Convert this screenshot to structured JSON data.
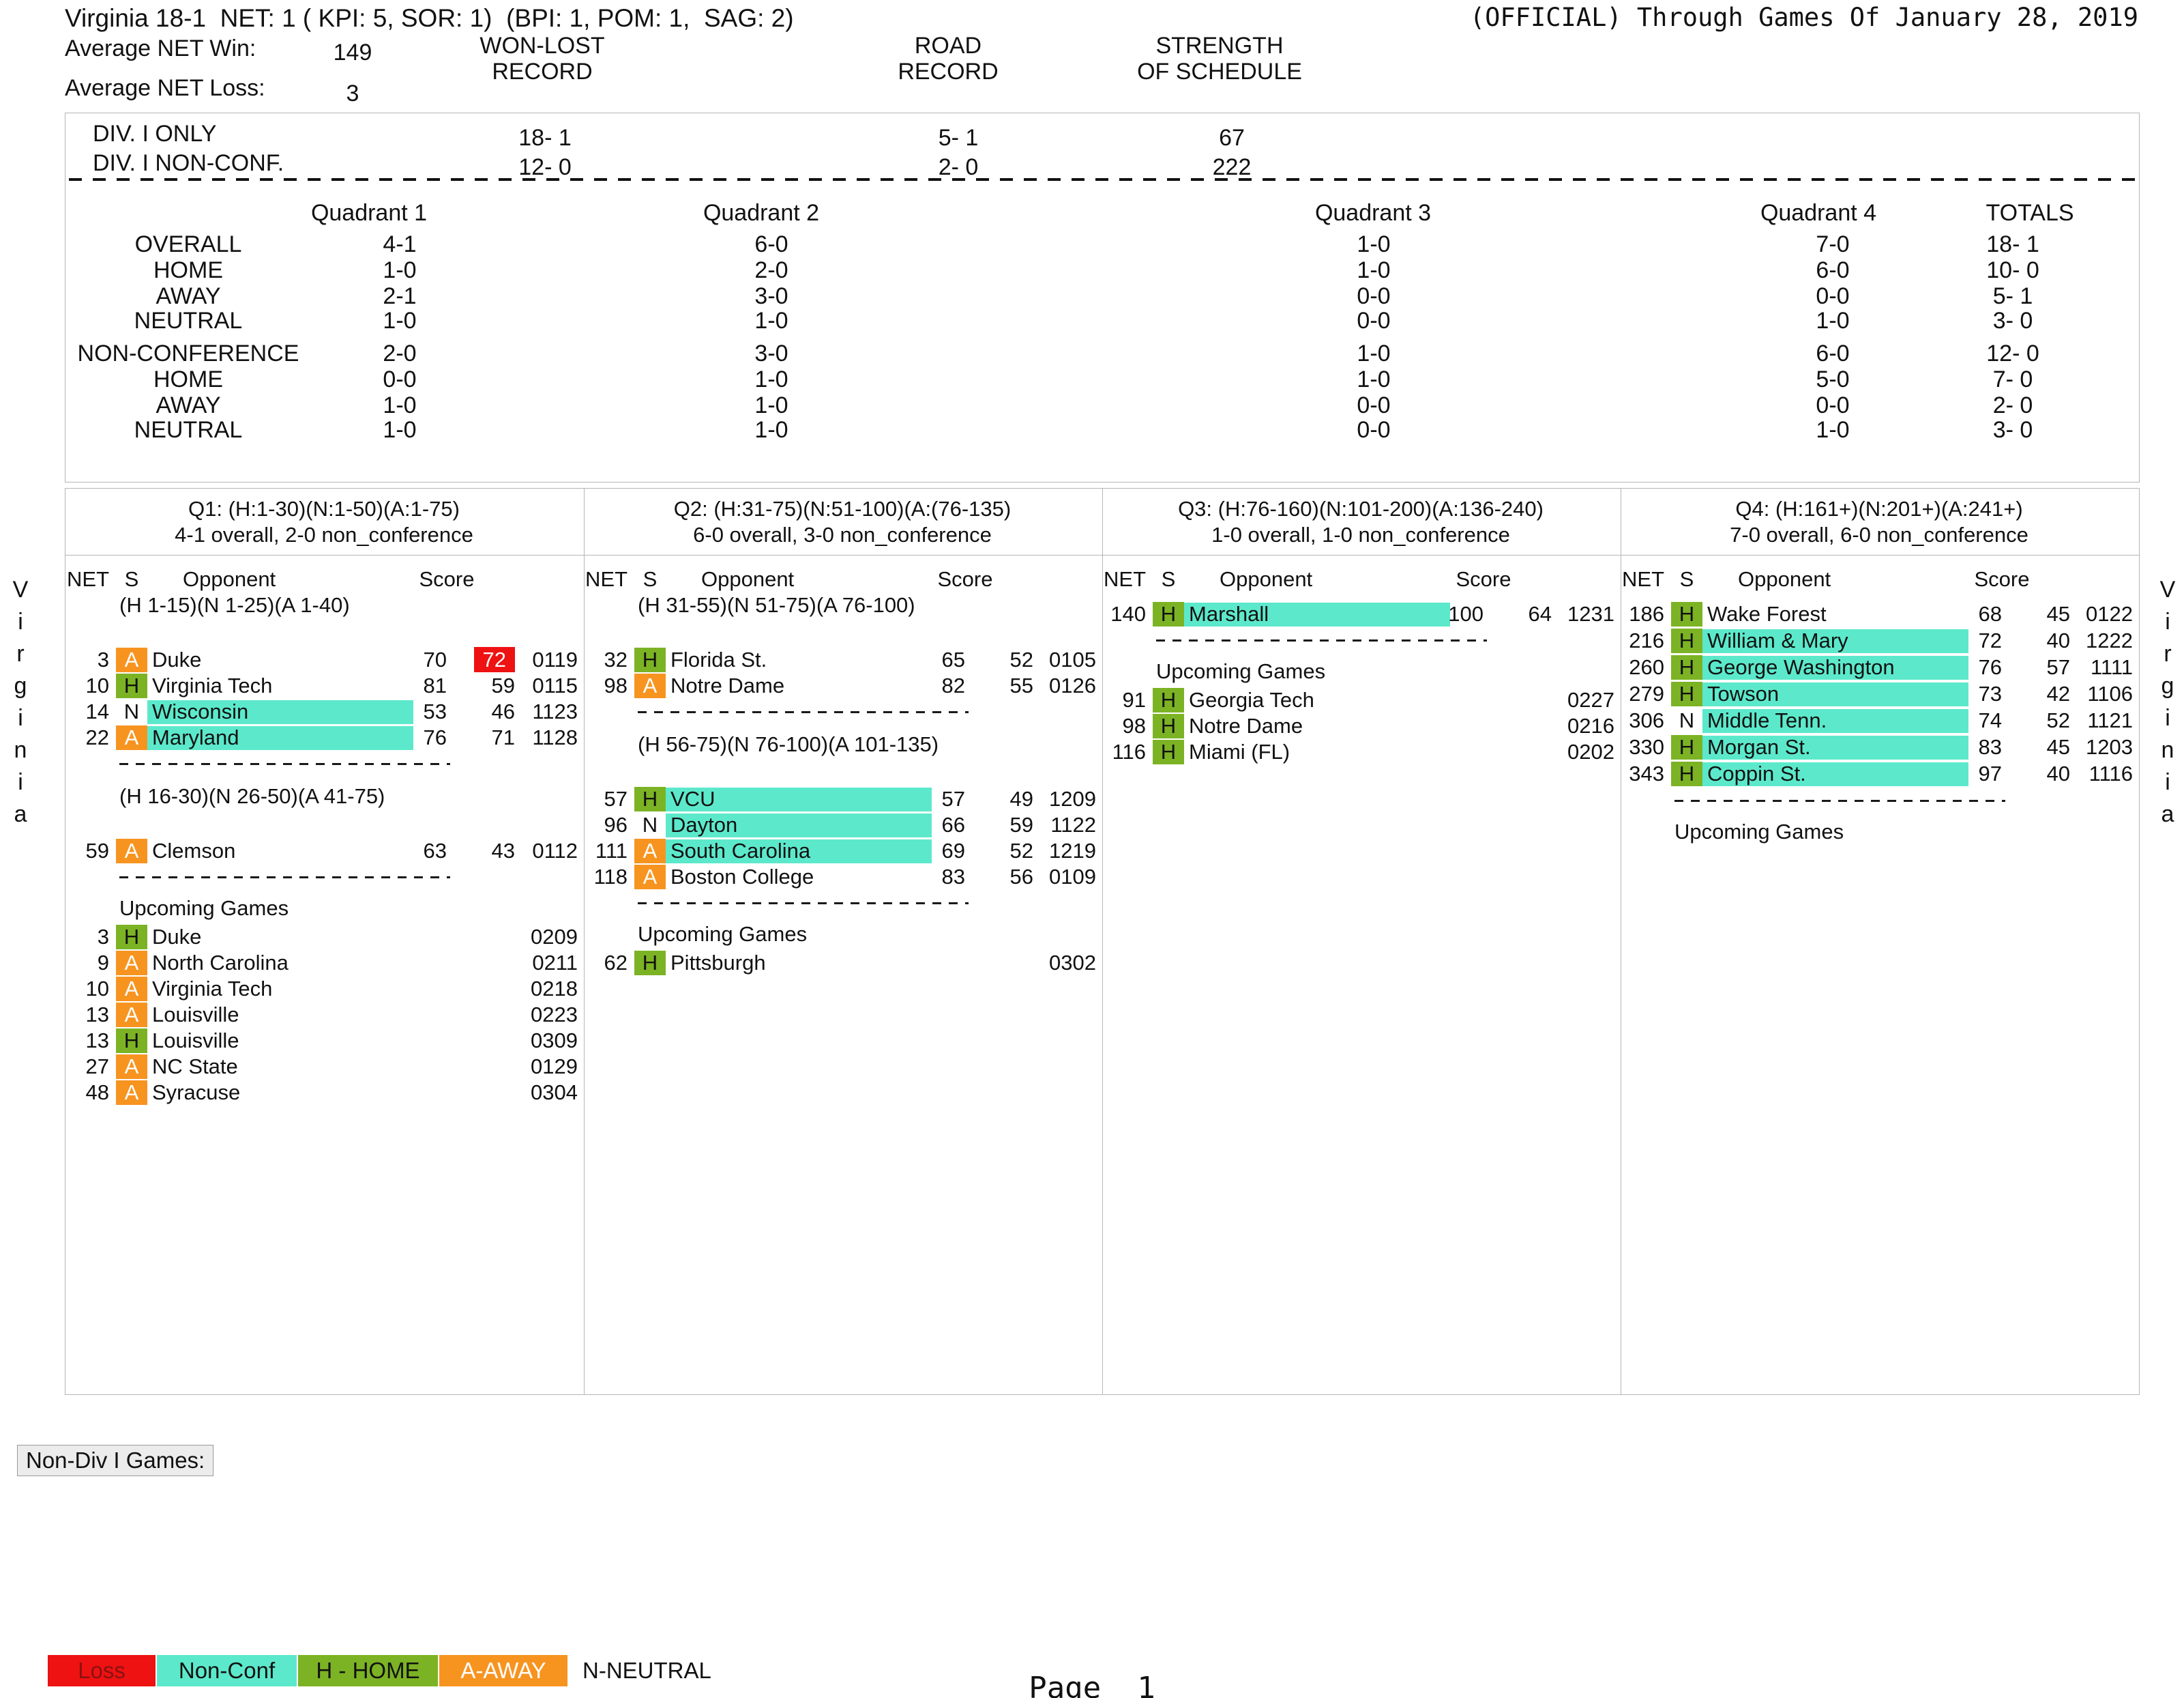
{
  "page": {
    "team_line": "Virginia 18-1  NET: 1 ( KPI: 5, SOR: 1)  (BPI: 1, POM: 1,  SAG: 2)",
    "official_line": "(OFFICIAL) Through Games Of January 28, 2019",
    "footer": "Page  1",
    "side_text": "Virginia",
    "non_div_games_label": "Non-Div I Games:"
  },
  "stats": {
    "avg_net_win_label": "Average NET Win:",
    "avg_net_win": "149",
    "avg_net_loss_label": "Average NET Loss:",
    "avg_net_loss": "3",
    "won_lost_header": [
      "WON-LOST",
      "RECORD"
    ],
    "road_header": [
      "ROAD",
      "RECORD"
    ],
    "sos_header": [
      "STRENGTH",
      "OF SCHEDULE"
    ],
    "div_rows": [
      {
        "label": "DIV. I ONLY",
        "won_lost": "18- 1",
        "road": "5- 1",
        "sos": "67"
      },
      {
        "label": "DIV. I NON-CONF.",
        "won_lost": "12- 0",
        "road": "2- 0",
        "sos": "222"
      }
    ]
  },
  "quadrant_table": {
    "columns": [
      "Quadrant 1",
      "Quadrant 2",
      "Quadrant 3",
      "Quadrant 4",
      "TOTALS"
    ],
    "rows": [
      {
        "label": "OVERALL",
        "values": [
          "4-1",
          "6-0",
          "1-0",
          "7-0",
          "18- 1"
        ]
      },
      {
        "label": "HOME",
        "values": [
          "1-0",
          "2-0",
          "1-0",
          "6-0",
          "10- 0"
        ]
      },
      {
        "label": "AWAY",
        "values": [
          "2-1",
          "3-0",
          "0-0",
          "0-0",
          "5- 1"
        ]
      },
      {
        "label": "NEUTRAL",
        "values": [
          "1-0",
          "1-0",
          "0-0",
          "1-0",
          "3- 0"
        ]
      },
      {
        "label": "NON-CONFERENCE",
        "values": [
          "2-0",
          "3-0",
          "1-0",
          "6-0",
          "12- 0"
        ]
      },
      {
        "label": "HOME",
        "values": [
          "0-0",
          "1-0",
          "1-0",
          "5-0",
          "7- 0"
        ]
      },
      {
        "label": "AWAY",
        "values": [
          "1-0",
          "1-0",
          "0-0",
          "0-0",
          "2- 0"
        ]
      },
      {
        "label": "NEUTRAL",
        "values": [
          "1-0",
          "1-0",
          "0-0",
          "1-0",
          "3- 0"
        ]
      }
    ]
  },
  "quadrants": [
    {
      "title": "Q1: (H:1-30)(N:1-50)(A:1-75)",
      "record": "4-1 overall, 2-0 non_conference",
      "columns": {
        "net": "NET",
        "s": "S",
        "opponent": "Opponent",
        "score": "Score"
      },
      "sections": [
        {
          "subrange": "(H 1-15)(N 1-25)(A 1-40)",
          "games": [
            {
              "net": "3",
              "site": "A",
              "opp": "Duke",
              "us": "70",
              "them": "72",
              "loss": true,
              "nonconf": false,
              "date": "0119"
            },
            {
              "net": "10",
              "site": "H",
              "opp": "Virginia Tech",
              "us": "81",
              "them": "59",
              "loss": false,
              "nonconf": false,
              "date": "0115"
            },
            {
              "net": "14",
              "site": "N",
              "opp": "Wisconsin",
              "us": "53",
              "them": "46",
              "loss": false,
              "nonconf": true,
              "date": "1123"
            },
            {
              "net": "22",
              "site": "A",
              "opp": "Maryland",
              "us": "76",
              "them": "71",
              "loss": false,
              "nonconf": true,
              "date": "1128"
            }
          ]
        },
        {
          "subrange": "(H 16-30)(N 26-50)(A 41-75)",
          "games": [
            {
              "net": "59",
              "site": "A",
              "opp": "Clemson",
              "us": "63",
              "them": "43",
              "loss": false,
              "nonconf": false,
              "date": "0112"
            }
          ]
        }
      ],
      "upcoming_label": "Upcoming Games",
      "upcoming": [
        {
          "net": "3",
          "site": "H",
          "opp": "Duke",
          "date": "0209"
        },
        {
          "net": "9",
          "site": "A",
          "opp": "North Carolina",
          "date": "0211"
        },
        {
          "net": "10",
          "site": "A",
          "opp": "Virginia Tech",
          "date": "0218"
        },
        {
          "net": "13",
          "site": "A",
          "opp": "Louisville",
          "date": "0223"
        },
        {
          "net": "13",
          "site": "H",
          "opp": "Louisville",
          "date": "0309"
        },
        {
          "net": "27",
          "site": "A",
          "opp": "NC State",
          "date": "0129"
        },
        {
          "net": "48",
          "site": "A",
          "opp": "Syracuse",
          "date": "0304"
        }
      ]
    },
    {
      "title": "Q2: (H:31-75)(N:51-100)(A:(76-135)",
      "record": "6-0 overall, 3-0 non_conference",
      "columns": {
        "net": "NET",
        "s": "S",
        "opponent": "Opponent",
        "score": "Score"
      },
      "sections": [
        {
          "subrange": "(H 31-55)(N 51-75)(A 76-100)",
          "games": [
            {
              "net": "32",
              "site": "H",
              "opp": "Florida St.",
              "us": "65",
              "them": "52",
              "loss": false,
              "nonconf": false,
              "date": "0105"
            },
            {
              "net": "98",
              "site": "A",
              "opp": "Notre Dame",
              "us": "82",
              "them": "55",
              "loss": false,
              "nonconf": false,
              "date": "0126"
            }
          ]
        },
        {
          "subrange": "(H 56-75)(N 76-100)(A 101-135)",
          "games": [
            {
              "net": "57",
              "site": "H",
              "opp": "VCU",
              "us": "57",
              "them": "49",
              "loss": false,
              "nonconf": true,
              "date": "1209"
            },
            {
              "net": "96",
              "site": "N",
              "opp": "Dayton",
              "us": "66",
              "them": "59",
              "loss": false,
              "nonconf": true,
              "date": "1122"
            },
            {
              "net": "111",
              "site": "A",
              "opp": "South Carolina",
              "us": "69",
              "them": "52",
              "loss": false,
              "nonconf": true,
              "date": "1219"
            },
            {
              "net": "118",
              "site": "A",
              "opp": "Boston College",
              "us": "83",
              "them": "56",
              "loss": false,
              "nonconf": false,
              "date": "0109"
            }
          ]
        }
      ],
      "upcoming_label": "Upcoming Games",
      "upcoming": [
        {
          "net": "62",
          "site": "H",
          "opp": "Pittsburgh",
          "date": "0302"
        }
      ]
    },
    {
      "title": "Q3: (H:76-160)(N:101-200)(A:136-240)",
      "record": "1-0 overall, 1-0 non_conference",
      "columns": {
        "net": "NET",
        "s": "S",
        "opponent": "Opponent",
        "score": "Score"
      },
      "sections": [
        {
          "subrange": null,
          "games": [
            {
              "net": "140",
              "site": "H",
              "opp": "Marshall",
              "us": "100",
              "them": "64",
              "loss": false,
              "nonconf": true,
              "date": "1231"
            }
          ]
        }
      ],
      "upcoming_label": "Upcoming Games",
      "upcoming": [
        {
          "net": "91",
          "site": "H",
          "opp": "Georgia Tech",
          "date": "0227"
        },
        {
          "net": "98",
          "site": "H",
          "opp": "Notre Dame",
          "date": "0216"
        },
        {
          "net": "116",
          "site": "H",
          "opp": "Miami (FL)",
          "date": "0202"
        }
      ]
    },
    {
      "title": "Q4: (H:161+)(N:201+)(A:241+)",
      "record": "7-0 overall, 6-0 non_conference",
      "columns": {
        "net": "NET",
        "s": "S",
        "opponent": "Opponent",
        "score": "Score"
      },
      "sections": [
        {
          "subrange": null,
          "games": [
            {
              "net": "186",
              "site": "H",
              "opp": "Wake Forest",
              "us": "68",
              "them": "45",
              "loss": false,
              "nonconf": false,
              "date": "0122"
            },
            {
              "net": "216",
              "site": "H",
              "opp": "William & Mary",
              "us": "72",
              "them": "40",
              "loss": false,
              "nonconf": true,
              "date": "1222"
            },
            {
              "net": "260",
              "site": "H",
              "opp": "George Washington",
              "us": "76",
              "them": "57",
              "loss": false,
              "nonconf": true,
              "date": "1111"
            },
            {
              "net": "279",
              "site": "H",
              "opp": "Towson",
              "us": "73",
              "them": "42",
              "loss": false,
              "nonconf": true,
              "date": "1106"
            },
            {
              "net": "306",
              "site": "N",
              "opp": "Middle Tenn.",
              "us": "74",
              "them": "52",
              "loss": false,
              "nonconf": true,
              "date": "1121"
            },
            {
              "net": "330",
              "site": "H",
              "opp": "Morgan St.",
              "us": "83",
              "them": "45",
              "loss": false,
              "nonconf": true,
              "date": "1203"
            },
            {
              "net": "343",
              "site": "H",
              "opp": "Coppin St.",
              "us": "97",
              "them": "40",
              "loss": false,
              "nonconf": true,
              "date": "1116"
            }
          ]
        }
      ],
      "upcoming_label": "Upcoming Games",
      "upcoming": []
    }
  ],
  "legend": {
    "loss": "Loss",
    "nonconf": "Non-Conf",
    "home": "H - HOME",
    "away": "A-AWAY",
    "neutral": "N-NEUTRAL"
  },
  "colors": {
    "loss_red": "#ee1212",
    "nonconf_teal": "#5ce9cb",
    "home_green": "#7cb324",
    "away_orange": "#f79420"
  }
}
